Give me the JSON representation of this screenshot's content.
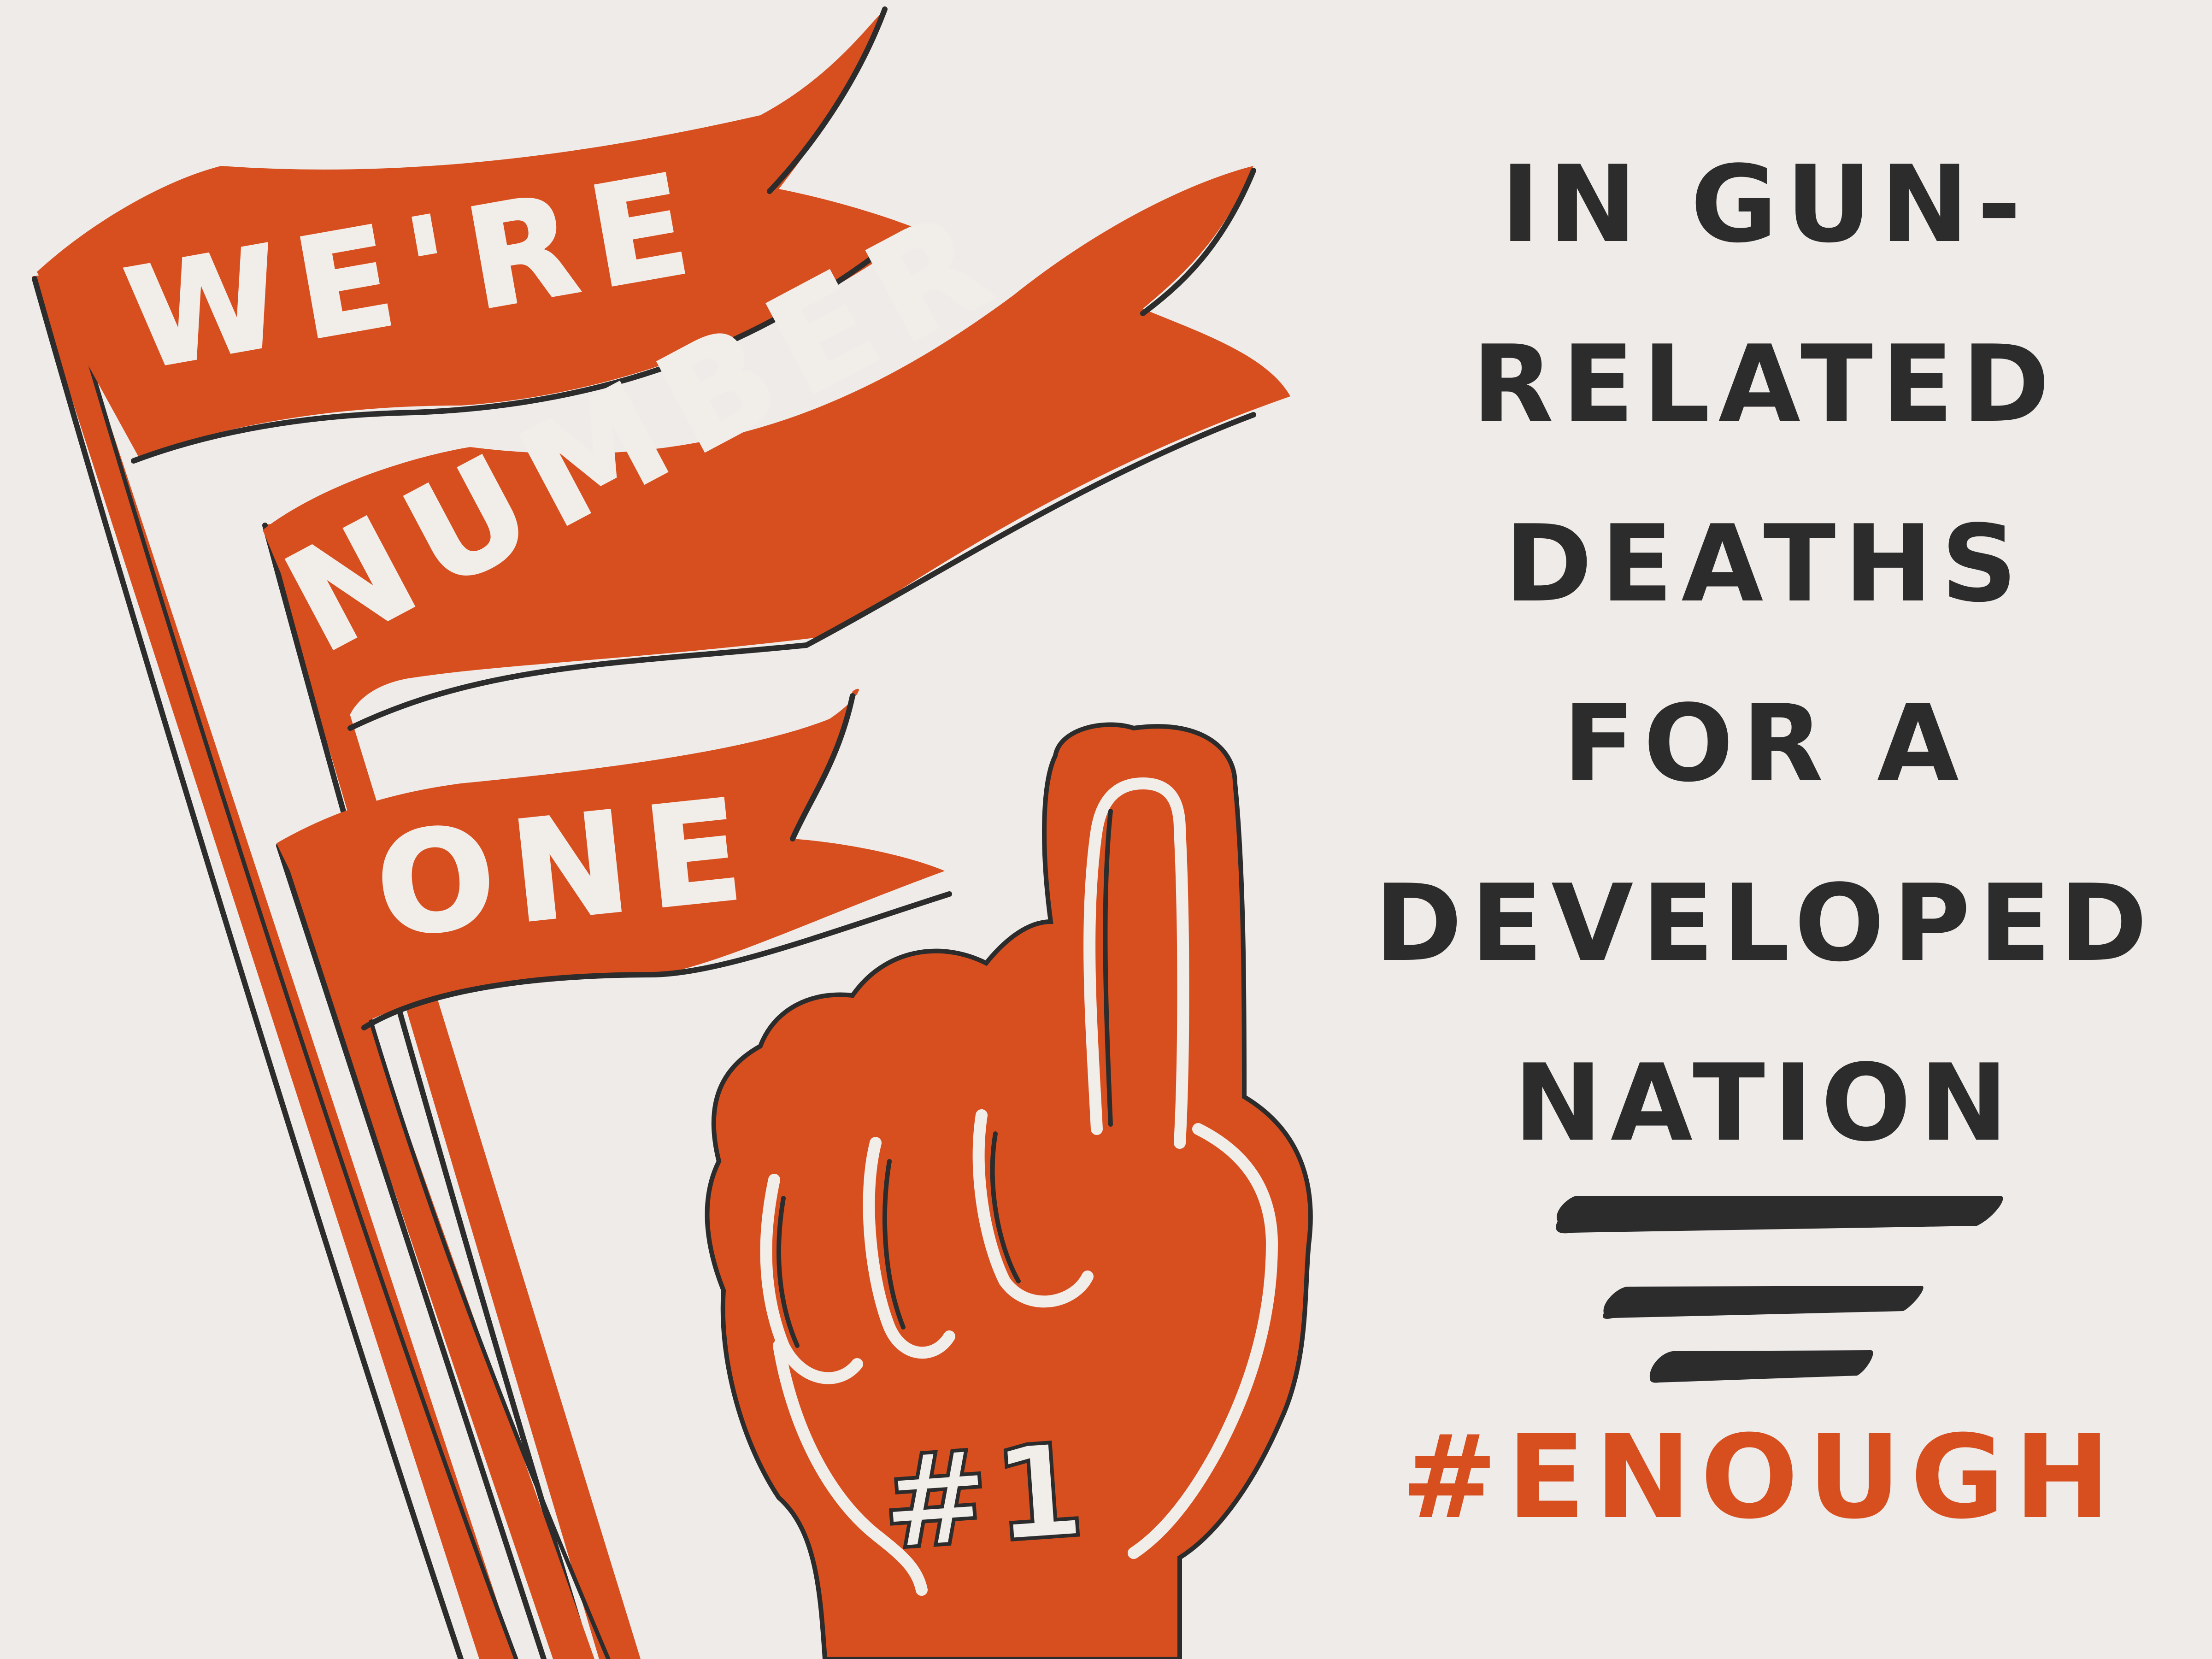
{
  "flags": {
    "line1": "WE'RE",
    "line2": "NUMBER",
    "line3": "ONE"
  },
  "foam_finger": {
    "label": "#1"
  },
  "headline": {
    "lines": [
      "IN GUN-",
      "RELATED",
      "DEATHS",
      "FOR A",
      "DEVELOPED",
      "NATION"
    ]
  },
  "hashtag": "#ENOUGH",
  "colors": {
    "background": "#efebe8",
    "accent_orange": "#d84f1f",
    "ink": "#2c2c2c",
    "cream_text": "#f1ede9"
  }
}
